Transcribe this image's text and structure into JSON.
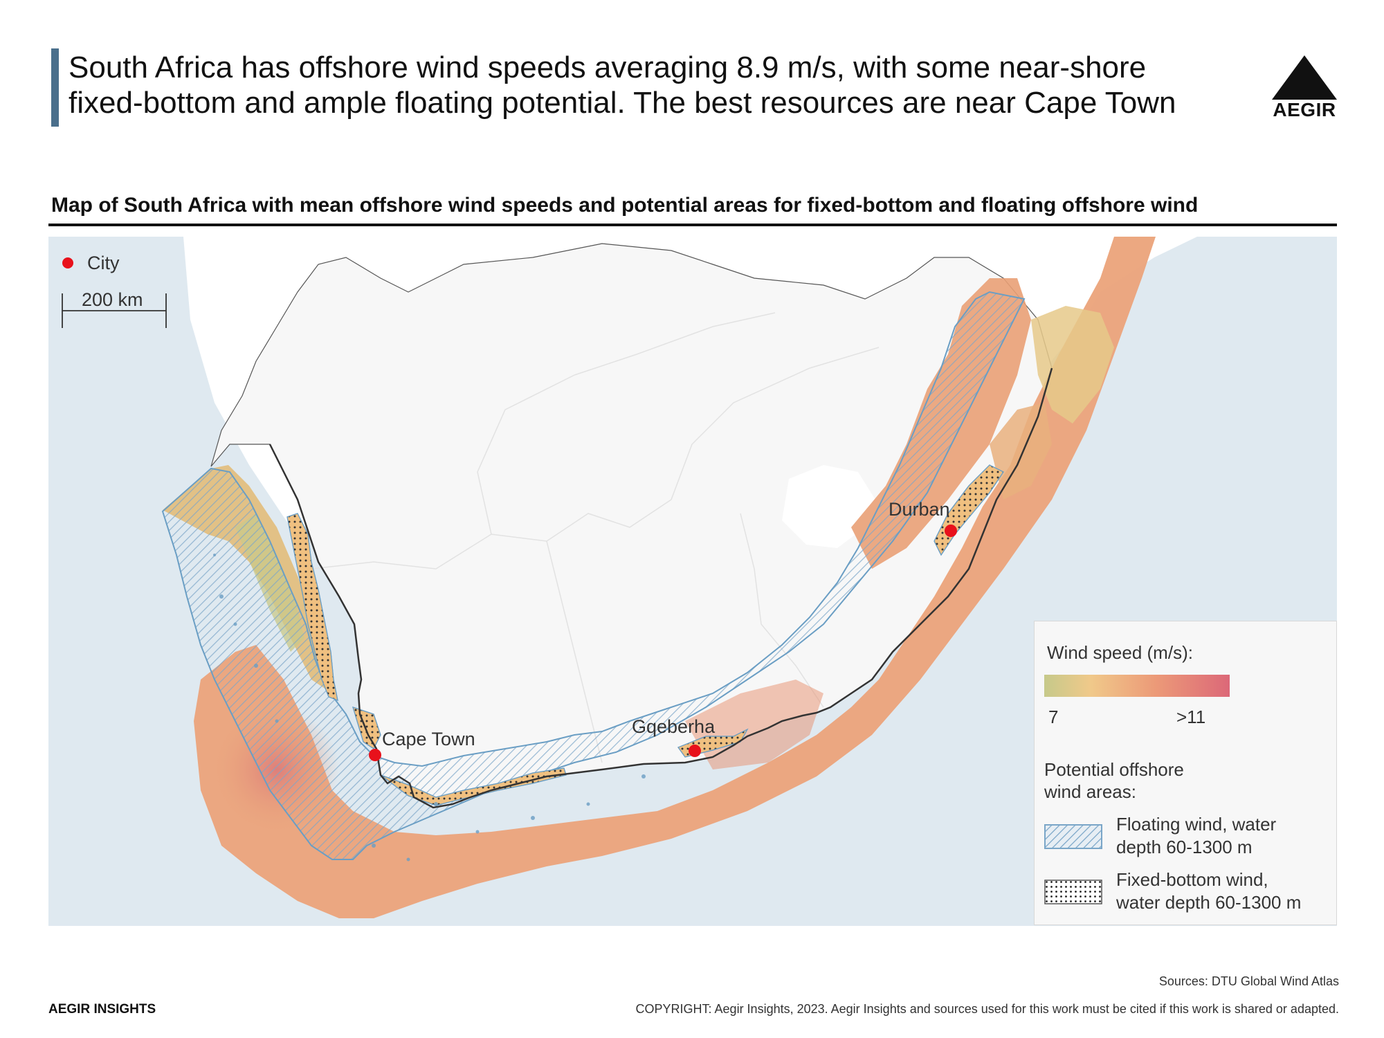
{
  "headline": {
    "line1": "South Africa has offshore wind speeds averaging 8.9 m/s, with some near-shore",
    "line2": "fixed-bottom and ample floating potential. The best resources are near Cape Town"
  },
  "logo": {
    "text": "AEGIR"
  },
  "map_title": "Map of South Africa with mean offshore wind speeds and potential areas for fixed-bottom and floating offshore wind",
  "map": {
    "city_legend_label": "City",
    "scale_bar_label": "200 km",
    "cities": [
      {
        "name": "Cape Town"
      },
      {
        "name": "Gqeberha"
      },
      {
        "name": "Durban"
      }
    ],
    "colors": {
      "ocean": "#dfe9f0",
      "land": "#f7f7f7",
      "neighbour_land": "#ffffff",
      "city_dot": "#e8111b",
      "wind_low": "#c6c98a",
      "wind_mid": "#f0c98a",
      "wind_high": "#e06e78",
      "floating_outline": "#6a9ec4"
    }
  },
  "legend": {
    "wind_speed_title": "Wind speed (m/s):",
    "scale_min": "7",
    "scale_max": ">11",
    "areas_title_line1": "Potential offshore",
    "areas_title_line2": "wind areas:",
    "floating_line1": "Floating wind, water",
    "floating_line2": "depth 60-1300 m",
    "fixed_line1": "Fixed-bottom wind,",
    "fixed_line2": "water depth 60-1300 m"
  },
  "footer": {
    "brand": "AEGIR INSIGHTS",
    "sources": "Sources: DTU Global Wind Atlas",
    "copyright": "COPYRIGHT: Aegir Insights, 2023. Aegir Insights and sources used for this work must be cited if this work is shared or adapted."
  }
}
